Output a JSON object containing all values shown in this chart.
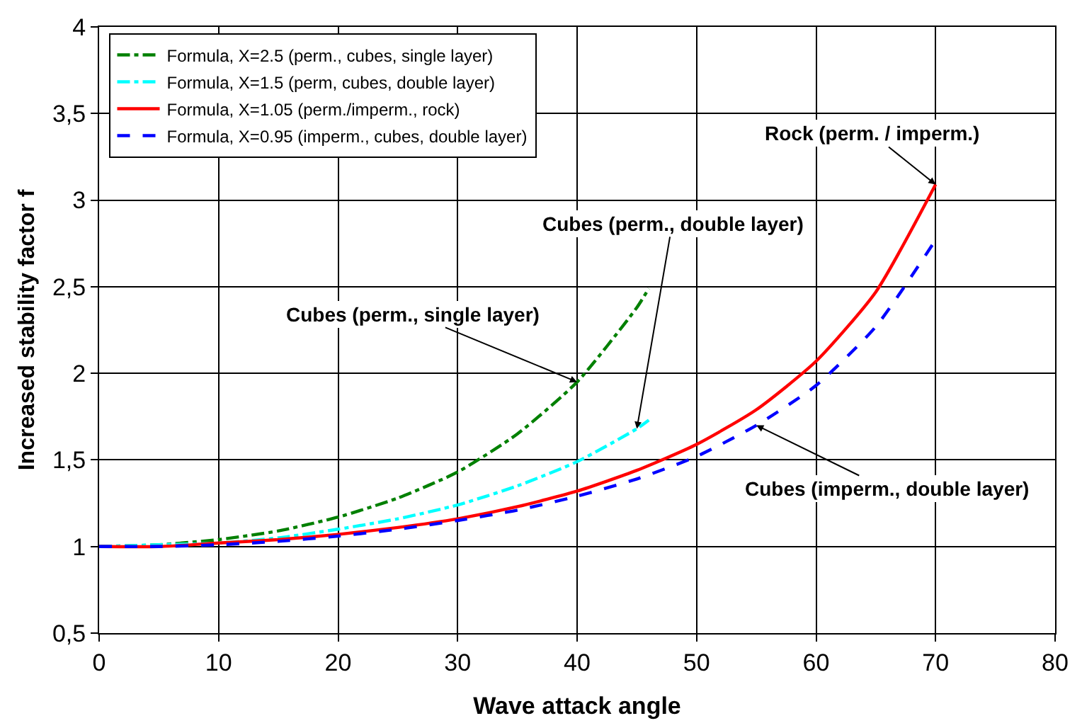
{
  "chart_data": {
    "type": "line",
    "xlabel": "Wave attack angle",
    "ylabel": "Increased stability factor f",
    "xlim": [
      0,
      80
    ],
    "xticks": [
      0,
      10,
      20,
      30,
      40,
      50,
      60,
      70,
      80
    ],
    "ylim": [
      0.5,
      4
    ],
    "yticks": [
      {
        "value": 0.5,
        "label": "0,5"
      },
      1,
      {
        "value": 1.5,
        "label": "1,5"
      },
      2,
      {
        "value": 2.5,
        "label": "2,5"
      },
      3,
      {
        "value": 3.5,
        "label": "3,5"
      },
      4
    ],
    "grid": true,
    "legend": "top left",
    "marker": "none",
    "series": [
      {
        "name": "Formula, X=2.5 (perm., cubes, single layer)",
        "color": "#008000",
        "line_style": "dashdot",
        "x": [
          0,
          5,
          10,
          15,
          20,
          25,
          30,
          35,
          40,
          45,
          46
        ],
        "values": [
          1,
          1.01,
          1.04,
          1.09,
          1.17,
          1.28,
          1.43,
          1.65,
          1.95,
          2.38,
          2.49
        ]
      },
      {
        "name": "Formula, X=1.5 (perm, cubes, double layer)",
        "color": "#00ffff",
        "line_style": "dashdot",
        "x": [
          0,
          5,
          10,
          15,
          20,
          25,
          30,
          35,
          40,
          45,
          46
        ],
        "values": [
          1,
          1.01,
          1.02,
          1.05,
          1.1,
          1.16,
          1.24,
          1.35,
          1.49,
          1.68,
          1.73
        ]
      },
      {
        "name": "Formula, X=1.05 (perm./imperm., rock)",
        "color": "#ff0000",
        "line_style": "solid",
        "x": [
          0,
          5,
          10,
          15,
          20,
          25,
          30,
          35,
          40,
          45,
          50,
          55,
          60,
          65,
          70
        ],
        "values": [
          1,
          1.0,
          1.02,
          1.04,
          1.07,
          1.11,
          1.16,
          1.23,
          1.32,
          1.44,
          1.59,
          1.79,
          2.07,
          2.47,
          3.09
        ]
      },
      {
        "name": "Formula, X=0.95 (imperm., cubes, double layer)",
        "color": "#0000ff",
        "line_style": "dashed",
        "x": [
          0,
          5,
          10,
          15,
          20,
          25,
          30,
          35,
          40,
          45,
          50,
          55,
          60,
          65,
          70
        ],
        "values": [
          1,
          1.0,
          1.01,
          1.03,
          1.06,
          1.1,
          1.15,
          1.21,
          1.29,
          1.39,
          1.52,
          1.7,
          1.93,
          2.27,
          2.77
        ]
      }
    ],
    "annotations": [
      {
        "text": "Cubes (perm., single layer)",
        "x": 40,
        "y": 1.95
      },
      {
        "text": "Cubes (perm., double layer)",
        "x": 45,
        "y": 1.68
      },
      {
        "text": "Rock (perm. / imperm.)",
        "x": 70,
        "y": 3.09
      },
      {
        "text": "Cubes (imperm., double layer)",
        "x": 55,
        "y": 1.7
      }
    ]
  }
}
